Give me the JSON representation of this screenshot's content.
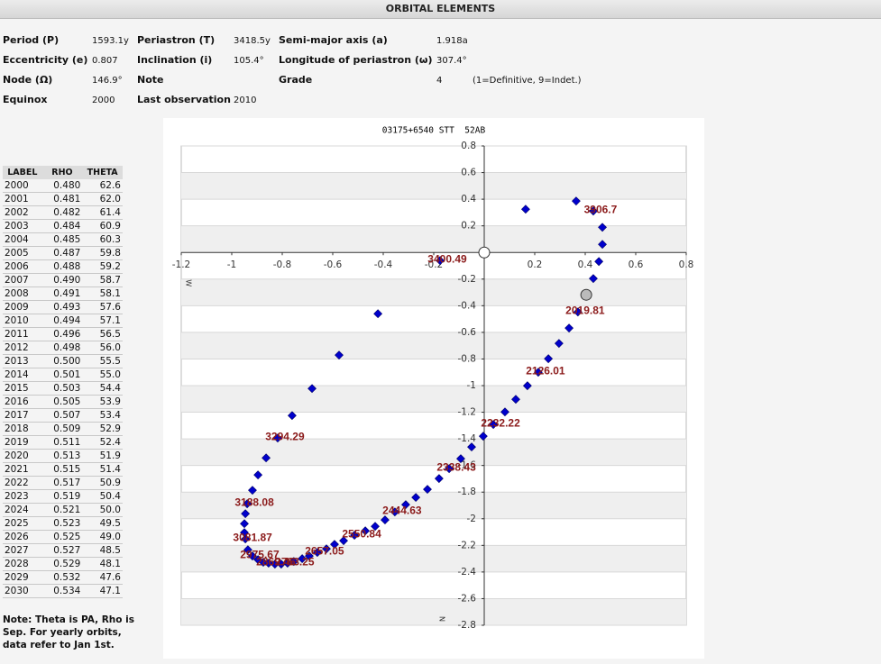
{
  "header": {
    "title": "ORBITAL ELEMENTS"
  },
  "elements": [
    [
      {
        "label": "Period (P)",
        "value": "1593.1y"
      },
      {
        "label": "Periastron (T)",
        "value": "3418.5y"
      },
      {
        "label": "Semi-major axis (a)",
        "value": "1.918a"
      }
    ],
    [
      {
        "label": "Eccentricity (e)",
        "value": "0.807"
      },
      {
        "label": "Inclination (i)",
        "value": "105.4°"
      },
      {
        "label": "Longitude of periastron (ω)",
        "value": "307.4°"
      }
    ],
    [
      {
        "label": "Node (Ω)",
        "value": "146.9°"
      },
      {
        "label": "Note"
      },
      {
        "label": "Grade",
        "value": "4",
        "hint": "(1=Definitive, 9=Indet.)"
      }
    ],
    [
      {
        "label": "Equinox",
        "value": "2000"
      },
      {
        "label": "Last observation",
        "value": "2010"
      }
    ]
  ],
  "table": {
    "columns": [
      "LABEL",
      "RHO",
      "THETA"
    ],
    "rows": [
      [
        "2000",
        "0.480",
        "62.6"
      ],
      [
        "2001",
        "0.481",
        "62.0"
      ],
      [
        "2002",
        "0.482",
        "61.4"
      ],
      [
        "2003",
        "0.484",
        "60.9"
      ],
      [
        "2004",
        "0.485",
        "60.3"
      ],
      [
        "2005",
        "0.487",
        "59.8"
      ],
      [
        "2006",
        "0.488",
        "59.2"
      ],
      [
        "2007",
        "0.490",
        "58.7"
      ],
      [
        "2008",
        "0.491",
        "58.1"
      ],
      [
        "2009",
        "0.493",
        "57.6"
      ],
      [
        "2010",
        "0.494",
        "57.1"
      ],
      [
        "2011",
        "0.496",
        "56.5"
      ],
      [
        "2012",
        "0.498",
        "56.0"
      ],
      [
        "2013",
        "0.500",
        "55.5"
      ],
      [
        "2014",
        "0.501",
        "55.0"
      ],
      [
        "2015",
        "0.503",
        "54.4"
      ],
      [
        "2016",
        "0.505",
        "53.9"
      ],
      [
        "2017",
        "0.507",
        "53.4"
      ],
      [
        "2018",
        "0.509",
        "52.9"
      ],
      [
        "2019",
        "0.511",
        "52.4"
      ],
      [
        "2020",
        "0.513",
        "51.9"
      ],
      [
        "2021",
        "0.515",
        "51.4"
      ],
      [
        "2022",
        "0.517",
        "50.9"
      ],
      [
        "2023",
        "0.519",
        "50.4"
      ],
      [
        "2024",
        "0.521",
        "50.0"
      ],
      [
        "2025",
        "0.523",
        "49.5"
      ],
      [
        "2026",
        "0.525",
        "49.0"
      ],
      [
        "2027",
        "0.527",
        "48.5"
      ],
      [
        "2028",
        "0.529",
        "48.1"
      ],
      [
        "2029",
        "0.532",
        "47.6"
      ],
      [
        "2030",
        "0.534",
        "47.1"
      ]
    ]
  },
  "note": "Note: Theta is PA, Rho is Sep. For yearly orbits, data refer to Jan 1st.",
  "chart_data": {
    "type": "scatter",
    "title": "03175+6540 STT  52AB",
    "xlim": [
      -1.2,
      0.8
    ],
    "ylim": [
      -2.8,
      0.8
    ],
    "xticks": [
      -1.2,
      -1.0,
      -0.8,
      -0.6,
      -0.4,
      -0.2,
      0.2,
      0.4,
      0.6,
      0.8
    ],
    "yticks": [
      0.8,
      0.6,
      0.4,
      0.2,
      -0.2,
      -0.4,
      -0.6,
      -0.8,
      -1.0,
      -1.2,
      -1.4,
      -1.6,
      -1.8,
      -2.0,
      -2.2,
      -2.4,
      -2.6,
      -2.8
    ],
    "grid": true,
    "color": "#0000cc",
    "label_color": "#8b1a1a",
    "west_label": "W",
    "north_label": "N",
    "x": [
      0.371,
      0.336,
      0.296,
      0.254,
      0.214,
      0.171,
      0.125,
      0.082,
      0.036,
      -0.004,
      -0.05,
      -0.093,
      -0.139,
      -0.179,
      -0.225,
      -0.271,
      -0.311,
      -0.354,
      -0.393,
      -0.432,
      -0.471,
      -0.514,
      -0.557,
      -0.593,
      -0.625,
      -0.661,
      -0.693,
      -0.721,
      -0.754,
      -0.779,
      -0.804,
      -0.829,
      -0.854,
      -0.875,
      -0.896,
      -0.918,
      -0.936,
      -0.946,
      -0.95,
      -0.95,
      -0.946,
      -0.939,
      -0.918,
      -0.896,
      -0.864,
      -0.818,
      -0.761,
      -0.682,
      -0.575,
      -0.421,
      -0.175,
      0.164,
      0.364,
      0.432,
      0.468,
      0.468,
      0.454,
      0.432
    ],
    "values": [
      -0.447,
      -0.568,
      -0.683,
      -0.798,
      -0.9,
      -1.001,
      -1.103,
      -1.198,
      -1.292,
      -1.38,
      -1.461,
      -1.549,
      -1.624,
      -1.698,
      -1.779,
      -1.84,
      -1.894,
      -1.949,
      -2.009,
      -2.057,
      -2.091,
      -2.124,
      -2.165,
      -2.192,
      -2.226,
      -2.253,
      -2.28,
      -2.3,
      -2.321,
      -2.334,
      -2.341,
      -2.341,
      -2.334,
      -2.327,
      -2.307,
      -2.28,
      -2.233,
      -2.152,
      -2.104,
      -2.037,
      -1.962,
      -1.888,
      -1.786,
      -1.671,
      -1.543,
      -1.394,
      -1.225,
      -1.022,
      -0.771,
      -0.46,
      -0.061,
      0.325,
      0.386,
      0.311,
      0.189,
      0.061,
      -0.068,
      -0.196
    ],
    "point_labels": [
      "2019.81",
      null,
      null,
      null,
      "2126.01",
      null,
      null,
      null,
      "2232.22",
      null,
      null,
      null,
      "2338.43",
      null,
      null,
      null,
      null,
      "2444.63",
      null,
      null,
      null,
      "2550.84",
      null,
      null,
      null,
      "2657.05",
      null,
      null,
      null,
      "2763.25",
      null,
      null,
      "2869.46",
      null,
      null,
      "2975.67",
      null,
      "3081.87",
      null,
      null,
      null,
      "3188.08",
      null,
      null,
      null,
      "3294.29",
      null,
      null,
      null,
      null,
      "3400.49",
      null,
      null,
      "3906.7",
      null,
      null,
      null,
      null
    ],
    "primary": {
      "x": 0,
      "y": 0
    },
    "current": {
      "x": 0.404,
      "y": -0.318
    }
  }
}
